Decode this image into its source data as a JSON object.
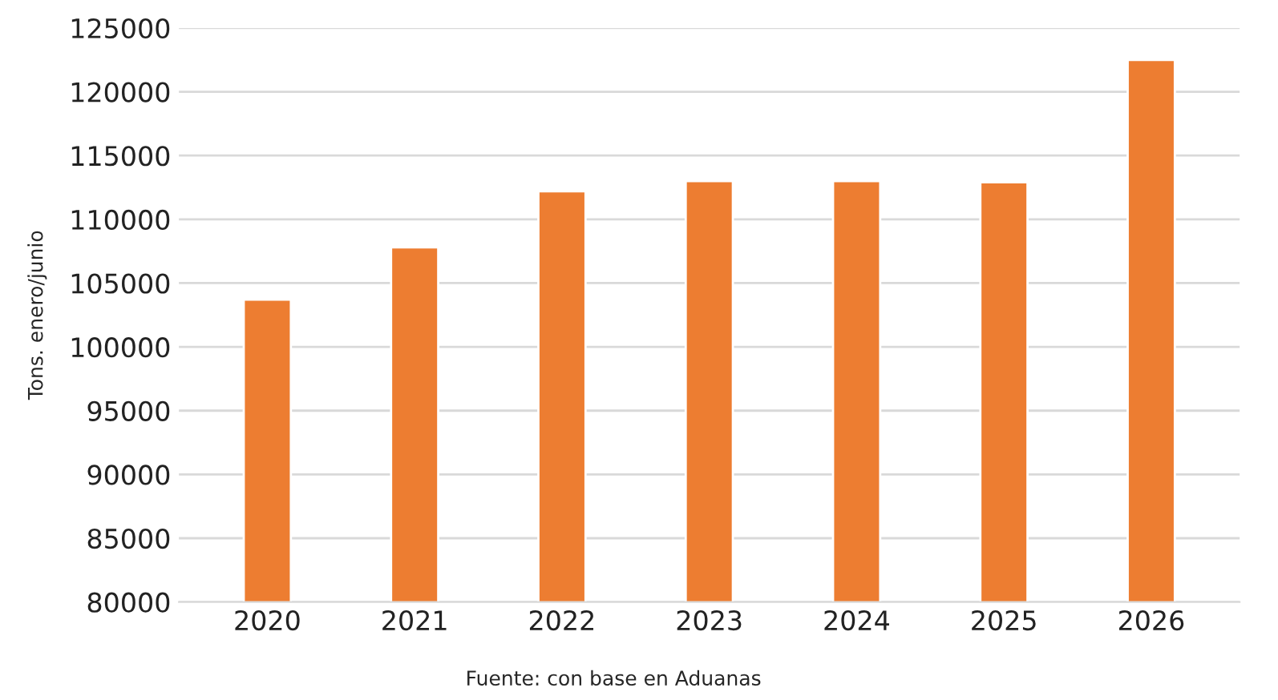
{
  "chart_data": {
    "type": "bar",
    "ylabel": "Tons. enero/junio",
    "categories": [
      "2020",
      "2021",
      "2022",
      "2023",
      "2024",
      "2025",
      "2026"
    ],
    "values": [
      103700,
      107800,
      112200,
      113000,
      113000,
      112900,
      122500
    ],
    "color": "#ed7d31",
    "ylim": [
      80000,
      125000
    ],
    "yticks": [
      80000,
      85000,
      90000,
      95000,
      100000,
      105000,
      110000,
      115000,
      120000,
      125000
    ],
    "grid": "y",
    "legend": false,
    "annotations": [
      "Fuente: con base en Aduanas"
    ]
  }
}
